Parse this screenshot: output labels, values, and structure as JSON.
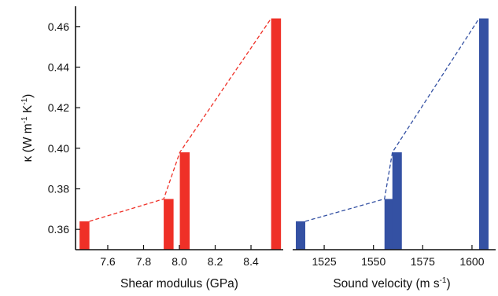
{
  "chart_data": [
    {
      "type": "bar",
      "xlabel": "Shear modulus (GPa)",
      "ylabel": "κ (W m-1 K-1)",
      "xlim": [
        7.42,
        8.58
      ],
      "ylim": [
        0.35,
        0.47
      ],
      "xticks": [
        "7.6",
        "7.8",
        "8.0",
        "8.2",
        "8.4"
      ],
      "yticks": [
        "0.36",
        "0.38",
        "0.40",
        "0.42",
        "0.44",
        "0.46"
      ],
      "bar_color": "#ef3027",
      "trend_line": {
        "style": "dashed",
        "color": "#ef3027"
      },
      "bar_width": 0.055,
      "x": [
        7.47,
        7.94,
        8.03,
        8.54
      ],
      "values": [
        0.364,
        0.375,
        0.398,
        0.464
      ]
    },
    {
      "type": "bar",
      "xlabel": "Sound velocity (m s-1)",
      "ylabel": "",
      "xlim": [
        1509,
        1612
      ],
      "ylim": [
        0.35,
        0.47
      ],
      "xticks": [
        "1525",
        "1550",
        "1575",
        "1600"
      ],
      "bar_color": "#3451a3",
      "trend_line": {
        "style": "dashed",
        "color": "#3451a3"
      },
      "bar_width": 4.8,
      "x": [
        1513,
        1558,
        1562,
        1606
      ],
      "values": [
        0.364,
        0.375,
        0.398,
        0.464
      ]
    }
  ]
}
